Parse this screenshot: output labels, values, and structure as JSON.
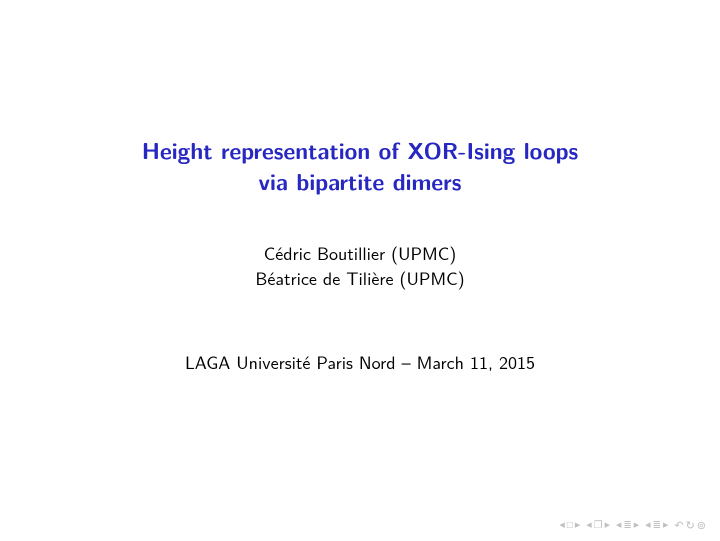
{
  "title": {
    "line1": "Height representation of XOR-Ising loops",
    "line2": "via bipartite dimers",
    "color": "#2727c1",
    "fontsize": 23,
    "fontweight": "bold"
  },
  "authors": {
    "line1": "Cédric Boutillier (UPMC)",
    "line2": "Béatrice de Tilière (UPMC)",
    "fontsize": 18,
    "color": "#000000"
  },
  "venue": {
    "text": "LAGA Université Paris Nord – March 11, 2015",
    "fontsize": 18,
    "color": "#000000"
  },
  "background_color": "#ffffff",
  "nav": {
    "color": "#c0c0c0",
    "first_frame": "◀ □ ▶",
    "first_section": "◀ 🗗 ▶",
    "prev_sub": "◀ ≡ ▶",
    "next_sub": "◀ ≡ ▶",
    "undo": "↶ ↷ ⊙"
  }
}
